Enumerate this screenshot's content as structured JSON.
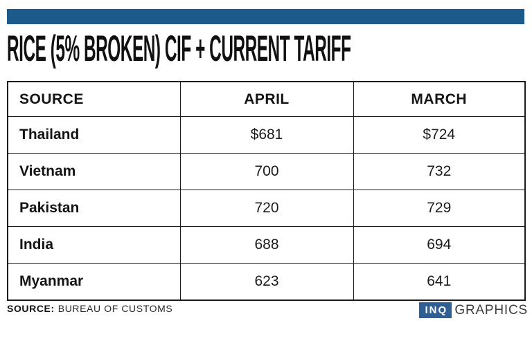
{
  "title": "RICE (5% BROKEN) CIF + CURRENT TARIFF",
  "colors": {
    "accent": "#1c5a8c",
    "logo_blue": "#2e5f94",
    "border": "#1a1a1a",
    "text": "#141414",
    "graphics_text": "#3d3d3d"
  },
  "table": {
    "headers": [
      "SOURCE",
      "APRIL",
      "MARCH"
    ],
    "rows": [
      {
        "source": "Thailand",
        "april": "$681",
        "march": "$724"
      },
      {
        "source": "Vietnam",
        "april": "700",
        "march": "732"
      },
      {
        "source": "Pakistan",
        "april": "720",
        "march": "729"
      },
      {
        "source": "India",
        "april": "688",
        "march": "694"
      },
      {
        "source": "Myanmar",
        "april": "623",
        "march": "641"
      }
    ]
  },
  "footer": {
    "source_label": "SOURCE:",
    "source_value": "BUREAU OF CUSTOMS"
  },
  "logo": {
    "inq": "INQ",
    "graphics": "GRAPHICS"
  },
  "chart_data": {
    "type": "table",
    "title": "RICE (5% BROKEN) CIF + CURRENT TARIFF",
    "columns": [
      "SOURCE",
      "APRIL",
      "MARCH"
    ],
    "categories": [
      "Thailand",
      "Vietnam",
      "Pakistan",
      "India",
      "Myanmar"
    ],
    "series": [
      {
        "name": "APRIL",
        "values": [
          681,
          700,
          720,
          688,
          623
        ]
      },
      {
        "name": "MARCH",
        "values": [
          724,
          732,
          729,
          694,
          641
        ]
      }
    ],
    "unit": "USD per metric ton (as displayed: $ shown on first row only)",
    "source": "BUREAU OF CUSTOMS"
  }
}
